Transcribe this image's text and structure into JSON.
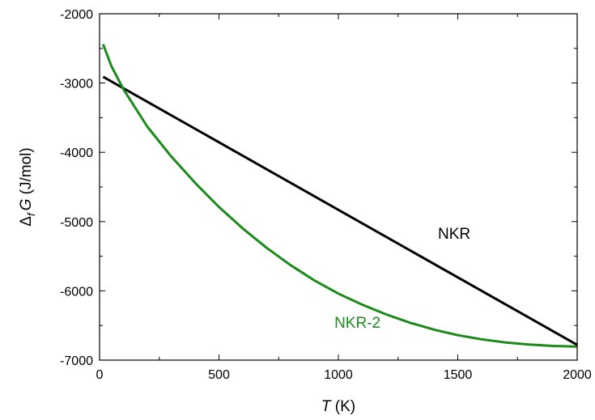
{
  "chart_data": {
    "type": "line",
    "title": "",
    "xlabel": {
      "italic": "T",
      "unit": " (K)"
    },
    "ylabel": {
      "symbol": "Δ",
      "subscript": "f",
      "italic": "G",
      "unit": " (J/mol)"
    },
    "xlim": [
      0,
      2000
    ],
    "ylim": [
      -7000,
      -2000
    ],
    "xticks": [
      0,
      500,
      1000,
      1500,
      2000
    ],
    "yticks": [
      -7000,
      -6000,
      -5000,
      -4000,
      -3000,
      -2000
    ],
    "x_minor_step": 250,
    "y_minor_step": 500,
    "grid": false,
    "legend": "none",
    "series": [
      {
        "name": "NKR",
        "color": "#000000",
        "x": [
          15,
          2000
        ],
        "y": [
          -2910,
          -6780
        ]
      },
      {
        "name": "NKR-2",
        "color": "#1a8a1a",
        "x": [
          15,
          50,
          100,
          200,
          300,
          400,
          500,
          600,
          700,
          800,
          900,
          1000,
          1100,
          1200,
          1300,
          1400,
          1500,
          1600,
          1700,
          1800,
          1900,
          2000
        ],
        "y": [
          -2440,
          -2760,
          -3090,
          -3630,
          -4060,
          -4440,
          -4790,
          -5100,
          -5380,
          -5630,
          -5850,
          -6040,
          -6200,
          -6340,
          -6460,
          -6560,
          -6640,
          -6700,
          -6745,
          -6775,
          -6795,
          -6805
        ]
      }
    ],
    "annotations": [
      {
        "text": "NKR",
        "x": 1485,
        "y": -5250,
        "color": "#000000"
      },
      {
        "text": "NKR-2",
        "x": 1080,
        "y": -6530,
        "color": "#1a8a1a"
      }
    ]
  }
}
